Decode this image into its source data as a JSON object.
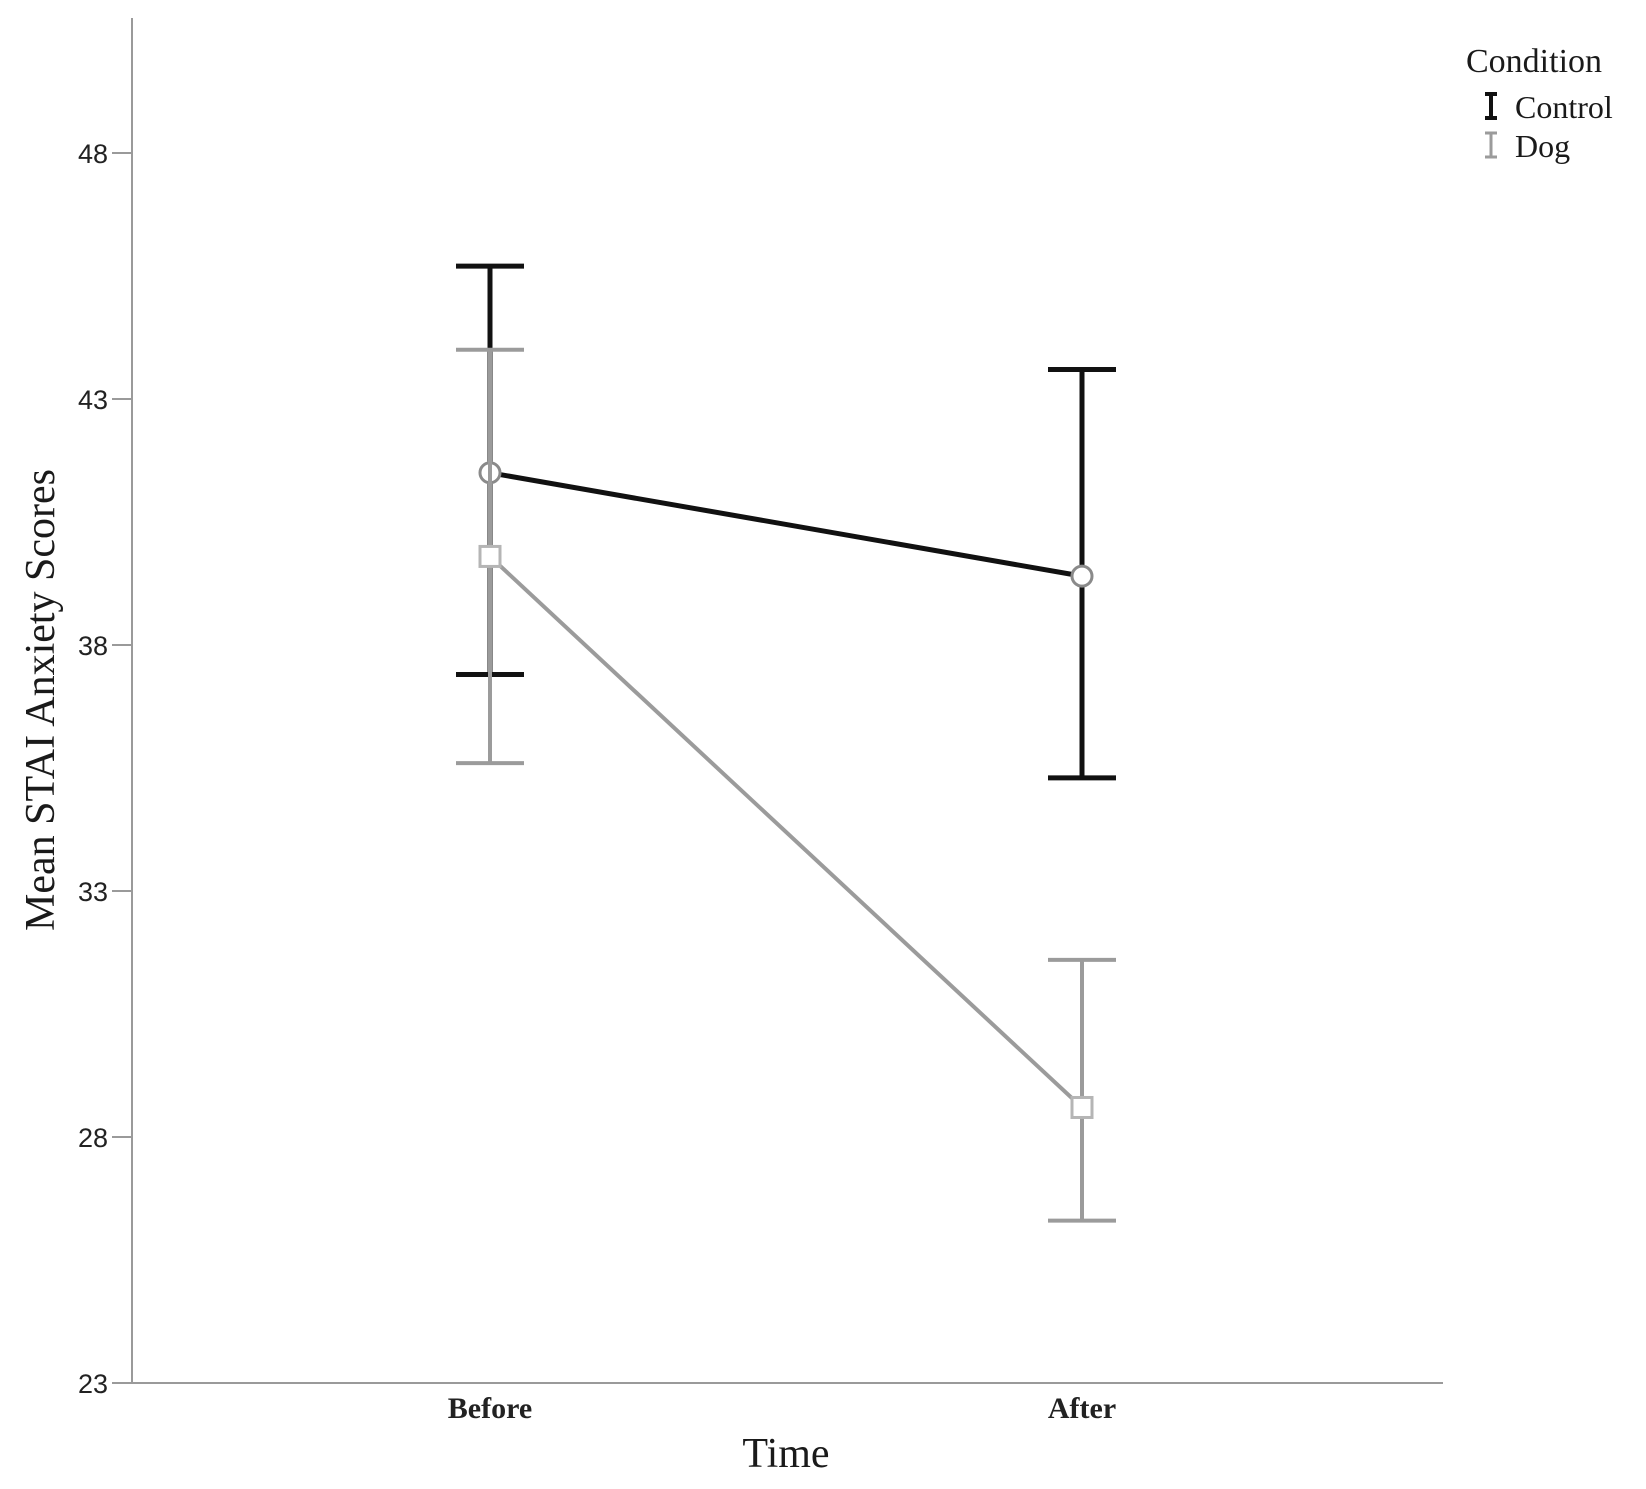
{
  "chart_data": {
    "type": "line",
    "title": "",
    "xlabel": "Time",
    "ylabel": "Mean STAI Anxiety Scores",
    "categories": [
      "Before",
      "After"
    ],
    "ylim": [
      23,
      50.5
    ],
    "yticks": [
      23,
      28,
      33,
      38,
      43,
      48
    ],
    "grid": false,
    "legend": {
      "title": "Condition",
      "position": "top-right"
    },
    "series": [
      {
        "name": "Control",
        "color": "#111111",
        "marker": "circle",
        "values": [
          41.5,
          39.4
        ],
        "error_lower": [
          37.4,
          35.3
        ],
        "error_upper": [
          45.7,
          43.6
        ]
      },
      {
        "name": "Dog",
        "color": "#9b9b9b",
        "marker": "square",
        "values": [
          39.8,
          28.6
        ],
        "error_lower": [
          35.6,
          26.3
        ],
        "error_upper": [
          44.0,
          31.6
        ]
      }
    ]
  }
}
